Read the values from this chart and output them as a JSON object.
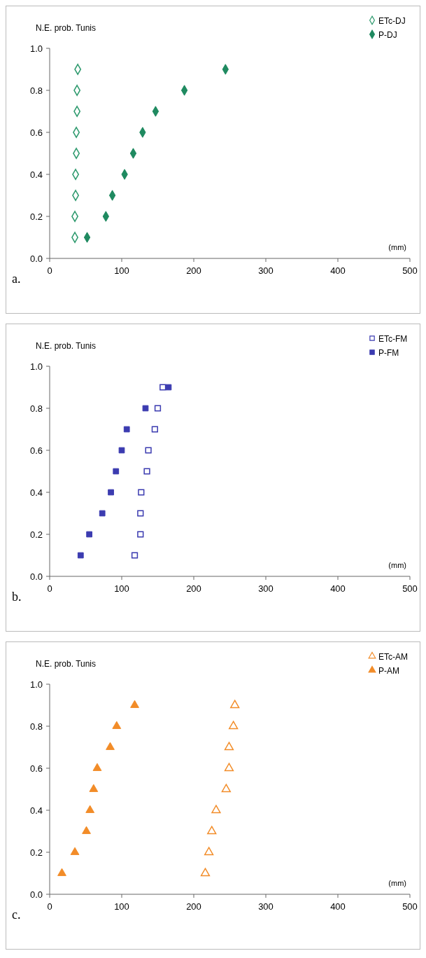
{
  "chart_data": [
    {
      "type": "scatter",
      "ylabel": "N.E. prob. Tunis",
      "xlabel": "(mm)",
      "annotations": [
        "a."
      ],
      "xlim": [
        0,
        500
      ],
      "xticks": [
        0,
        100,
        200,
        300,
        400,
        500
      ],
      "ylim": [
        0,
        1
      ],
      "yticks": [
        {
          "value": 0,
          "label": "0.0"
        },
        {
          "value": 0.2,
          "label": "0.2"
        },
        {
          "value": 0.4,
          "label": "0.4"
        },
        {
          "value": 0.6,
          "label": "0.6"
        },
        {
          "value": 0.8,
          "label": "0.8"
        },
        {
          "value": 1,
          "label": "1.0"
        }
      ],
      "grid": false,
      "legend": "top right",
      "marker": "diamond",
      "series": [
        {
          "name": "ETc-DJ",
          "color": "#2e9a6e",
          "x": [
            35,
            35,
            36,
            36,
            37,
            37,
            38,
            38,
            39
          ],
          "values": [
            0.1,
            0.2,
            0.3,
            0.4,
            0.5,
            0.6,
            0.7,
            0.8,
            0.9
          ]
        },
        {
          "name": "P-DJ",
          "color": "#1f8a60",
          "x": [
            52,
            78,
            87,
            104,
            116,
            129,
            147,
            187,
            244
          ],
          "values": [
            0.1,
            0.2,
            0.3,
            0.4,
            0.5,
            0.6,
            0.7,
            0.8,
            0.9
          ]
        }
      ]
    },
    {
      "type": "scatter",
      "ylabel": "N.E. prob. Tunis",
      "xlabel": "(mm)",
      "annotations": [
        "b."
      ],
      "xlim": [
        0,
        500
      ],
      "xticks": [
        0,
        100,
        200,
        300,
        400,
        500
      ],
      "ylim": [
        0,
        1
      ],
      "yticks": [
        {
          "value": 0,
          "label": "0.0"
        },
        {
          "value": 0.2,
          "label": "0.2"
        },
        {
          "value": 0.4,
          "label": "0.4"
        },
        {
          "value": 0.6,
          "label": "0.6"
        },
        {
          "value": 0.8,
          "label": "0.8"
        },
        {
          "value": 1,
          "label": "1.0"
        }
      ],
      "grid": false,
      "legend": "top right",
      "marker": "square",
      "series": [
        {
          "name": "ETc-FM",
          "color": "#3b3bb0",
          "x": [
            118,
            126,
            126,
            127,
            135,
            137,
            146,
            150,
            157
          ],
          "values": [
            0.1,
            0.2,
            0.3,
            0.4,
            0.5,
            0.6,
            0.7,
            0.8,
            0.9
          ]
        },
        {
          "name": "P-FM",
          "color": "#3b3bb0",
          "x": [
            43,
            55,
            73,
            85,
            92,
            100,
            107,
            133,
            165
          ],
          "values": [
            0.1,
            0.2,
            0.3,
            0.4,
            0.5,
            0.6,
            0.7,
            0.8,
            0.9
          ]
        }
      ]
    },
    {
      "type": "scatter",
      "ylabel": "N.E. prob. Tunis",
      "xlabel": "(mm)",
      "annotations": [
        "c."
      ],
      "xlim": [
        0,
        500
      ],
      "xticks": [
        0,
        100,
        200,
        300,
        400,
        500
      ],
      "ylim": [
        0,
        1
      ],
      "yticks": [
        {
          "value": 0,
          "label": "0.0"
        },
        {
          "value": 0.2,
          "label": "0.2"
        },
        {
          "value": 0.4,
          "label": "0.4"
        },
        {
          "value": 0.6,
          "label": "0.6"
        },
        {
          "value": 0.8,
          "label": "0.8"
        },
        {
          "value": 1,
          "label": "1.0"
        }
      ],
      "grid": false,
      "legend": "top right",
      "marker": "triangle",
      "series": [
        {
          "name": "ETc-AM",
          "color": "#f28c28",
          "x": [
            216,
            221,
            225,
            231,
            245,
            249,
            249,
            255,
            257
          ],
          "values": [
            0.1,
            0.2,
            0.3,
            0.4,
            0.5,
            0.6,
            0.7,
            0.8,
            0.9
          ]
        },
        {
          "name": "P-AM",
          "color": "#f28c28",
          "x": [
            17,
            35,
            51,
            56,
            61,
            66,
            84,
            93,
            118
          ],
          "values": [
            0.1,
            0.2,
            0.3,
            0.4,
            0.5,
            0.6,
            0.7,
            0.8,
            0.9
          ]
        }
      ]
    }
  ]
}
